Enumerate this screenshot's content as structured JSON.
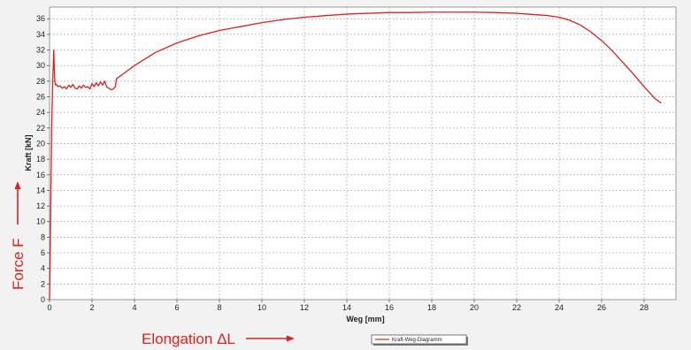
{
  "chart_data": {
    "type": "line",
    "title": "",
    "xlabel": "Weg [mm]",
    "ylabel": "Kraft [kN]",
    "xlim": [
      0,
      29.5
    ],
    "ylim": [
      0,
      37.5
    ],
    "x_ticks": [
      "0",
      "2",
      "4",
      "6",
      "8",
      "10",
      "12",
      "14",
      "16",
      "18",
      "20",
      "22",
      "24",
      "26",
      "28"
    ],
    "y_ticks": [
      "0",
      "2",
      "4",
      "6",
      "8",
      "10",
      "12",
      "14",
      "16",
      "18",
      "20",
      "22",
      "24",
      "26",
      "28",
      "30",
      "32",
      "34",
      "36"
    ],
    "grid": true,
    "legend_position": "bottom-center",
    "series": [
      {
        "name": "Kraft-Weg-Diagramm",
        "color": "#e0201c",
        "x": [
          0.0,
          0.05,
          0.1,
          0.15,
          0.2,
          0.22,
          0.25,
          0.28,
          0.32,
          0.4,
          0.5,
          0.6,
          0.7,
          0.8,
          0.9,
          1.0,
          1.1,
          1.2,
          1.3,
          1.4,
          1.5,
          1.6,
          1.7,
          1.8,
          1.9,
          2.0,
          2.1,
          2.2,
          2.3,
          2.4,
          2.5,
          2.6,
          2.7,
          2.8,
          2.9,
          3.0,
          3.1,
          3.15,
          3.3,
          3.5,
          4.0,
          5.0,
          6.0,
          7.0,
          8.0,
          9.0,
          10.0,
          11.0,
          12.0,
          13.0,
          14.0,
          15.0,
          16.0,
          17.0,
          18.0,
          19.0,
          20.0,
          21.0,
          22.0,
          23.0,
          23.5,
          24.0,
          24.5,
          25.0,
          25.5,
          26.0,
          26.5,
          27.0,
          27.5,
          28.0,
          28.5,
          28.8
        ],
        "y": [
          0.0,
          10.0,
          22.0,
          28.0,
          32.0,
          30.0,
          28.0,
          27.5,
          27.6,
          27.3,
          27.4,
          27.1,
          27.3,
          27.0,
          27.5,
          27.2,
          27.6,
          27.1,
          27.0,
          27.4,
          27.1,
          27.5,
          27.2,
          27.3,
          27.0,
          27.7,
          27.3,
          27.8,
          27.4,
          27.9,
          27.5,
          28.0,
          27.2,
          27.1,
          26.9,
          27.0,
          27.3,
          28.3,
          28.6,
          29.0,
          30.0,
          31.7,
          32.9,
          33.8,
          34.5,
          35.0,
          35.5,
          35.9,
          36.2,
          36.4,
          36.6,
          36.7,
          36.8,
          36.8,
          36.85,
          36.85,
          36.85,
          36.8,
          36.7,
          36.5,
          36.4,
          36.2,
          35.8,
          35.2,
          34.3,
          33.2,
          31.9,
          30.4,
          28.9,
          27.3,
          25.8,
          25.2
        ]
      }
    ],
    "annotations": {
      "y_arrow_label": "Force F",
      "x_arrow_label": "Elongation ΔL"
    }
  }
}
